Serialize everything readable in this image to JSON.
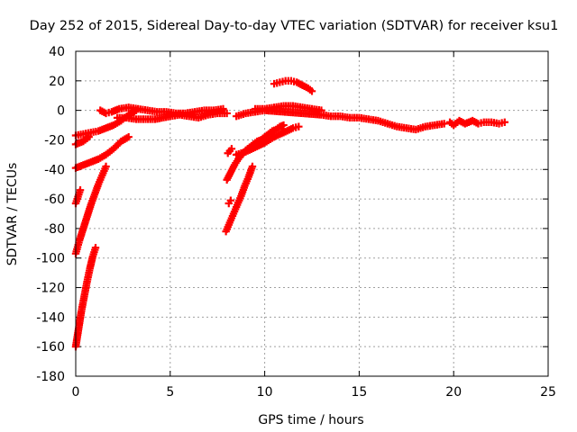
{
  "chart_data": {
    "type": "scatter",
    "title": "Day 252 of 2015, Sidereal Day-to-day VTEC variation (SDTVAR) for receiver ksu1",
    "xlabel": "GPS time / hours",
    "ylabel": "SDTVAR / TECUs",
    "xlim": [
      0,
      25
    ],
    "ylim": [
      -180,
      40
    ],
    "xticks": [
      0,
      5,
      10,
      15,
      20,
      25
    ],
    "yticks": [
      -180,
      -160,
      -140,
      -120,
      -100,
      -80,
      -60,
      -40,
      -20,
      0,
      20,
      40
    ],
    "grid": true,
    "marker": "plus",
    "color": "#ff0000",
    "series": [
      {
        "name": "track-steep-low",
        "points": [
          [
            0.0,
            -160
          ],
          [
            0.15,
            -148
          ],
          [
            0.3,
            -136
          ],
          [
            0.45,
            -126
          ],
          [
            0.6,
            -116
          ],
          [
            0.75,
            -107
          ],
          [
            0.9,
            -99
          ],
          [
            1.05,
            -93
          ]
        ]
      },
      {
        "name": "track-steep-mid",
        "points": [
          [
            0.0,
            -97
          ],
          [
            0.2,
            -88
          ],
          [
            0.4,
            -80
          ],
          [
            0.6,
            -72
          ],
          [
            0.8,
            -64
          ],
          [
            1.0,
            -57
          ],
          [
            1.2,
            -50
          ],
          [
            1.4,
            -44
          ],
          [
            1.6,
            -38
          ]
        ]
      },
      {
        "name": "track-short",
        "points": [
          [
            0.0,
            -63
          ],
          [
            0.08,
            -60
          ],
          [
            0.16,
            -57
          ],
          [
            0.24,
            -54
          ]
        ]
      },
      {
        "name": "track-rise-a",
        "points": [
          [
            0.0,
            -39
          ],
          [
            0.4,
            -37
          ],
          [
            0.8,
            -35
          ],
          [
            1.2,
            -33
          ],
          [
            1.6,
            -30
          ],
          [
            2.0,
            -26
          ],
          [
            2.4,
            -21
          ],
          [
            2.8,
            -18
          ]
        ]
      },
      {
        "name": "track-rise-b",
        "points": [
          [
            0.0,
            -23
          ],
          [
            0.4,
            -21
          ],
          [
            0.7,
            -18
          ]
        ]
      },
      {
        "name": "track-rise-c",
        "points": [
          [
            0.0,
            -17
          ],
          [
            0.4,
            -16
          ],
          [
            0.8,
            -15
          ],
          [
            1.2,
            -14
          ],
          [
            1.6,
            -12
          ],
          [
            2.0,
            -10
          ],
          [
            2.4,
            -7
          ],
          [
            2.8,
            -3
          ],
          [
            3.2,
            0
          ]
        ]
      },
      {
        "name": "cluster-zero-1",
        "points": [
          [
            1.3,
            0
          ],
          [
            1.6,
            -2
          ],
          [
            1.9,
            -1
          ],
          [
            2.3,
            1
          ],
          [
            2.8,
            2
          ],
          [
            3.3,
            1
          ],
          [
            3.8,
            0
          ],
          [
            4.3,
            -1
          ],
          [
            4.8,
            -1
          ],
          [
            5.3,
            -2
          ],
          [
            5.8,
            -2
          ],
          [
            6.3,
            -1
          ],
          [
            6.8,
            0
          ],
          [
            7.3,
            0
          ],
          [
            7.8,
            1
          ]
        ]
      },
      {
        "name": "cluster-zero-2",
        "points": [
          [
            2.2,
            -5
          ],
          [
            2.7,
            -5
          ],
          [
            3.2,
            -6
          ],
          [
            3.7,
            -6
          ],
          [
            4.2,
            -6
          ],
          [
            5.0,
            -4
          ],
          [
            5.5,
            -3
          ],
          [
            6.0,
            -4
          ],
          [
            6.5,
            -5
          ],
          [
            7.0,
            -3
          ],
          [
            7.5,
            -2
          ],
          [
            8.0,
            -2
          ]
        ]
      },
      {
        "name": "track-8h-a",
        "points": [
          [
            7.95,
            -82
          ],
          [
            8.15,
            -76
          ],
          [
            8.35,
            -70
          ],
          [
            8.55,
            -64
          ],
          [
            8.75,
            -58
          ],
          [
            8.95,
            -51
          ],
          [
            9.15,
            -45
          ],
          [
            9.35,
            -38
          ]
        ]
      },
      {
        "name": "track-8h-b",
        "points": [
          [
            8.0,
            -47
          ],
          [
            8.2,
            -42
          ],
          [
            8.4,
            -37
          ],
          [
            8.6,
            -33
          ],
          [
            8.8,
            -30
          ],
          [
            9.0,
            -27
          ],
          [
            9.2,
            -25
          ],
          [
            9.4,
            -23
          ],
          [
            9.6,
            -21
          ],
          [
            9.8,
            -20
          ],
          [
            10.0,
            -18
          ],
          [
            10.2,
            -16
          ],
          [
            10.4,
            -14
          ],
          [
            10.6,
            -13
          ],
          [
            10.8,
            -11
          ],
          [
            11.0,
            -10
          ]
        ]
      },
      {
        "name": "track-8h-c",
        "points": [
          [
            8.5,
            -30
          ],
          [
            9.0,
            -28
          ],
          [
            9.5,
            -25
          ],
          [
            10.0,
            -22
          ],
          [
            10.5,
            -18
          ],
          [
            11.0,
            -15
          ],
          [
            11.5,
            -12
          ],
          [
            11.8,
            -11
          ]
        ]
      },
      {
        "name": "track-8h-d",
        "points": [
          [
            8.1,
            -63
          ],
          [
            8.2,
            -61
          ]
        ]
      },
      {
        "name": "track-8h-e",
        "points": [
          [
            8.05,
            -29
          ],
          [
            8.25,
            -26
          ]
        ]
      },
      {
        "name": "arc-20",
        "points": [
          [
            10.5,
            18
          ],
          [
            10.8,
            19
          ],
          [
            11.1,
            20
          ],
          [
            11.4,
            20
          ],
          [
            11.7,
            19
          ],
          [
            12.0,
            17
          ],
          [
            12.3,
            15
          ],
          [
            12.5,
            13
          ]
        ]
      },
      {
        "name": "arc-zero",
        "points": [
          [
            9.5,
            1
          ],
          [
            10.0,
            1
          ],
          [
            10.5,
            2
          ],
          [
            11.0,
            3
          ],
          [
            11.5,
            3
          ],
          [
            12.0,
            2
          ],
          [
            12.5,
            1
          ],
          [
            13.0,
            0
          ]
        ]
      },
      {
        "name": "cluster-mid",
        "points": [
          [
            8.5,
            -4
          ],
          [
            9.0,
            -2
          ],
          [
            9.5,
            -1
          ],
          [
            10.0,
            0
          ],
          [
            13.0,
            -3
          ],
          [
            13.5,
            -4
          ],
          [
            14.0,
            -4
          ],
          [
            14.5,
            -5
          ],
          [
            15.0,
            -5
          ],
          [
            15.5,
            -6
          ],
          [
            16.0,
            -7
          ],
          [
            16.5,
            -9
          ],
          [
            17.0,
            -11
          ],
          [
            17.5,
            -12
          ],
          [
            18.0,
            -13
          ],
          [
            18.5,
            -11
          ],
          [
            19.0,
            -10
          ],
          [
            19.5,
            -9
          ]
        ]
      },
      {
        "name": "cluster-tail",
        "points": [
          [
            19.8,
            -8
          ],
          [
            20.0,
            -10
          ],
          [
            20.3,
            -7
          ],
          [
            20.6,
            -9
          ],
          [
            21.0,
            -7
          ],
          [
            21.3,
            -9
          ],
          [
            21.6,
            -8
          ],
          [
            22.0,
            -8
          ],
          [
            22.4,
            -9
          ],
          [
            22.7,
            -8
          ]
        ]
      }
    ]
  }
}
